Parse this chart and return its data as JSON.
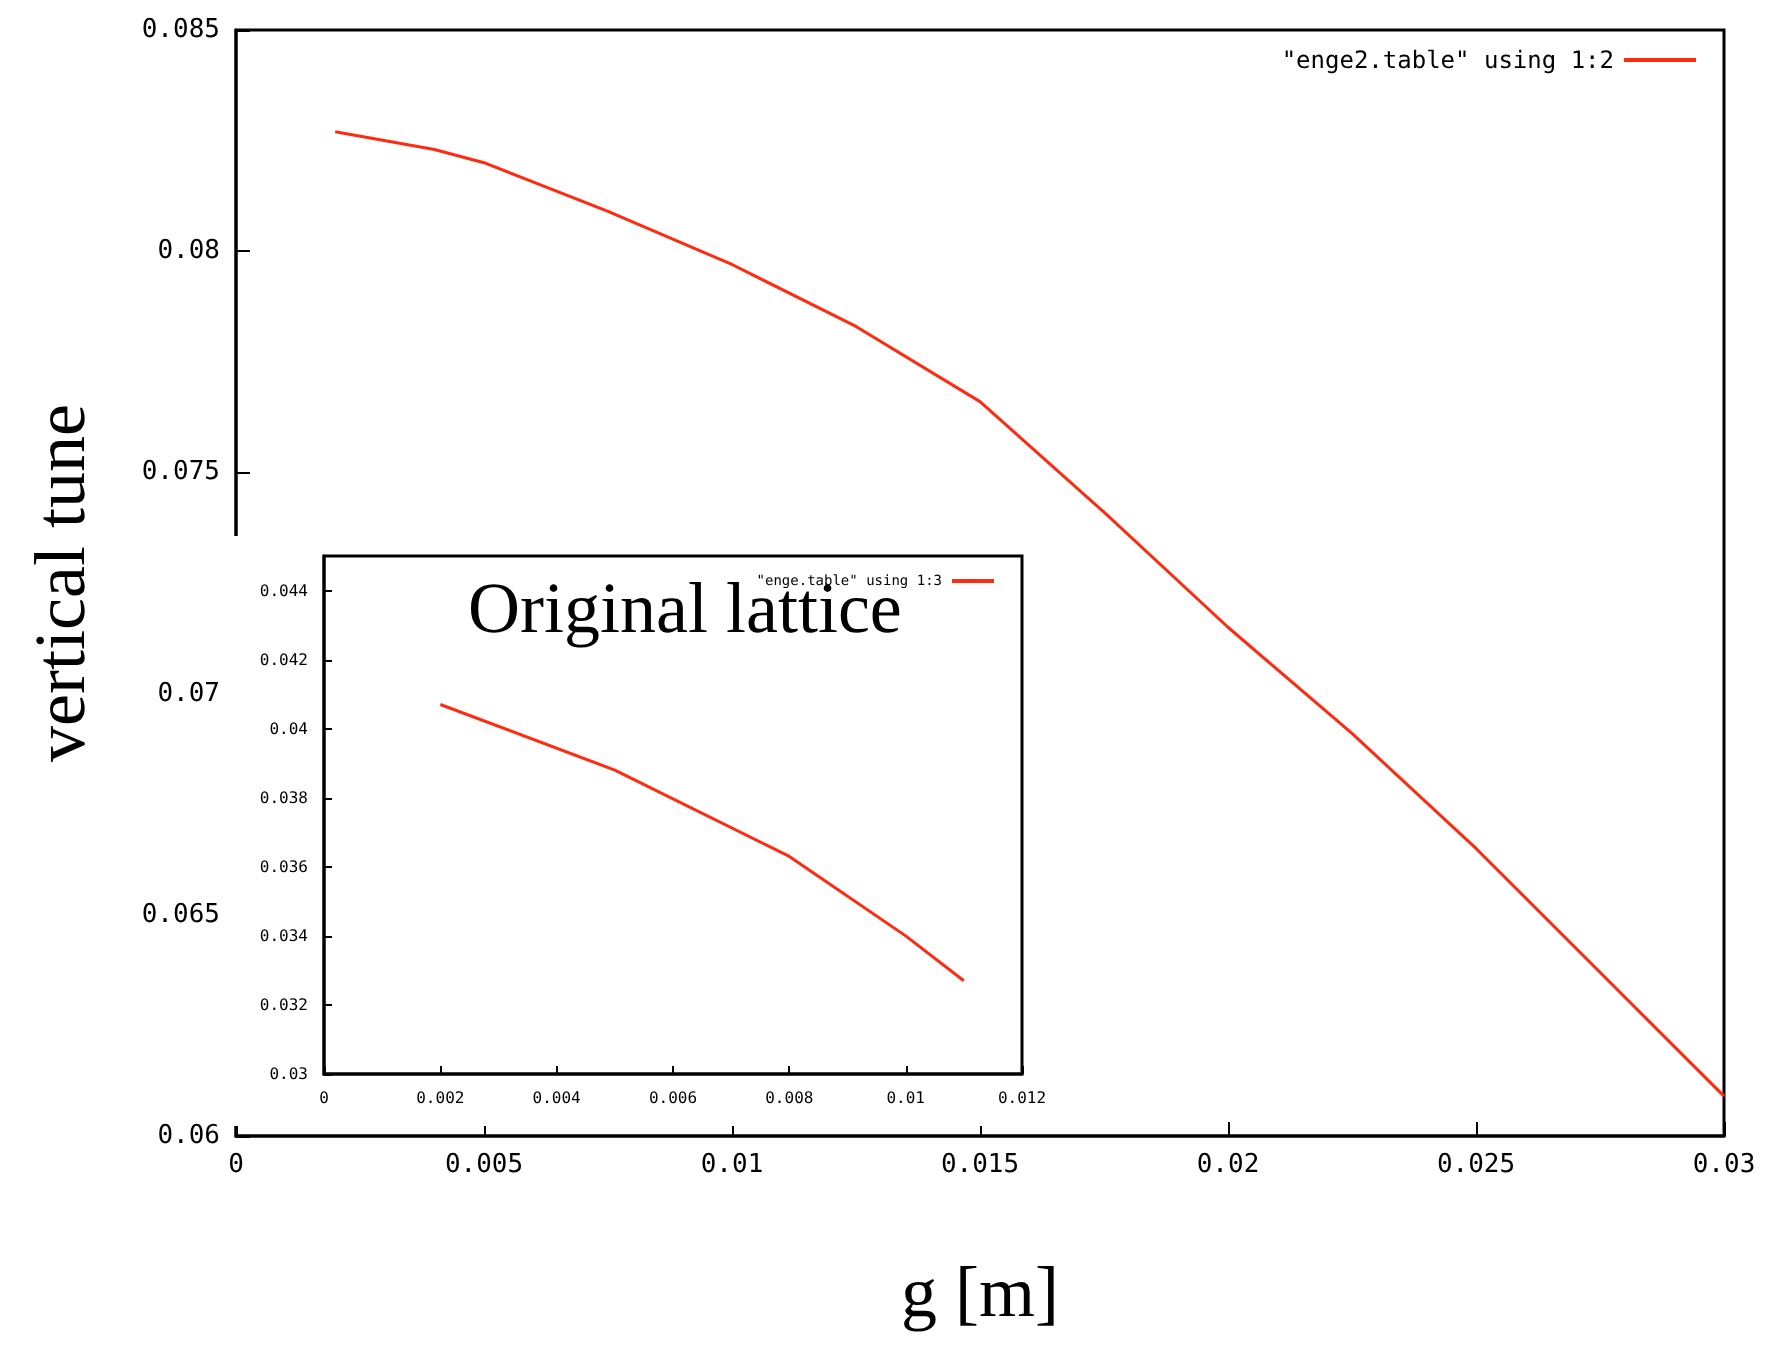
{
  "chart_data": [
    {
      "type": "line",
      "xlabel": "g [m]",
      "ylabel": "vertical tune",
      "xlim": [
        0,
        0.03
      ],
      "ylim": [
        0.06,
        0.085
      ],
      "xticks": [
        0,
        0.005,
        0.01,
        0.015,
        0.02,
        0.025,
        0.03
      ],
      "yticks": [
        0.06,
        0.065,
        0.07,
        0.075,
        0.08,
        0.085
      ],
      "legend": "top right",
      "marker": "none",
      "line_style": "solid",
      "series": [
        {
          "name": "\"enge2.table\" using 1:2",
          "color": "#ff2a10",
          "x": [
            0.002,
            0.004,
            0.005,
            0.0075,
            0.01,
            0.0125,
            0.015,
            0.0175,
            0.02,
            0.0225,
            0.025,
            0.0275,
            0.03
          ],
          "values": [
            0.0827,
            0.0823,
            0.082,
            0.0809,
            0.0797,
            0.0783,
            0.0766,
            0.0741,
            0.0715,
            0.0691,
            0.0665,
            0.0637,
            0.0609
          ]
        }
      ]
    },
    {
      "type": "line",
      "annotations": [
        "Original lattice"
      ],
      "xlim": [
        0,
        0.012
      ],
      "ylim": [
        0.03,
        0.045
      ],
      "xticks": [
        0,
        0.002,
        0.004,
        0.006,
        0.008,
        0.01,
        0.012
      ],
      "yticks": [
        0.03,
        0.032,
        0.034,
        0.036,
        0.038,
        0.04,
        0.042,
        0.044
      ],
      "legend": "top right",
      "marker": "none",
      "line_style": "solid",
      "series": [
        {
          "name": "\"enge.table\" using 1:3",
          "color": "#ff2a10",
          "x": [
            0.002,
            0.005,
            0.008,
            0.01,
            0.011
          ],
          "values": [
            0.0407,
            0.0388,
            0.0363,
            0.034,
            0.0327
          ]
        }
      ]
    }
  ]
}
